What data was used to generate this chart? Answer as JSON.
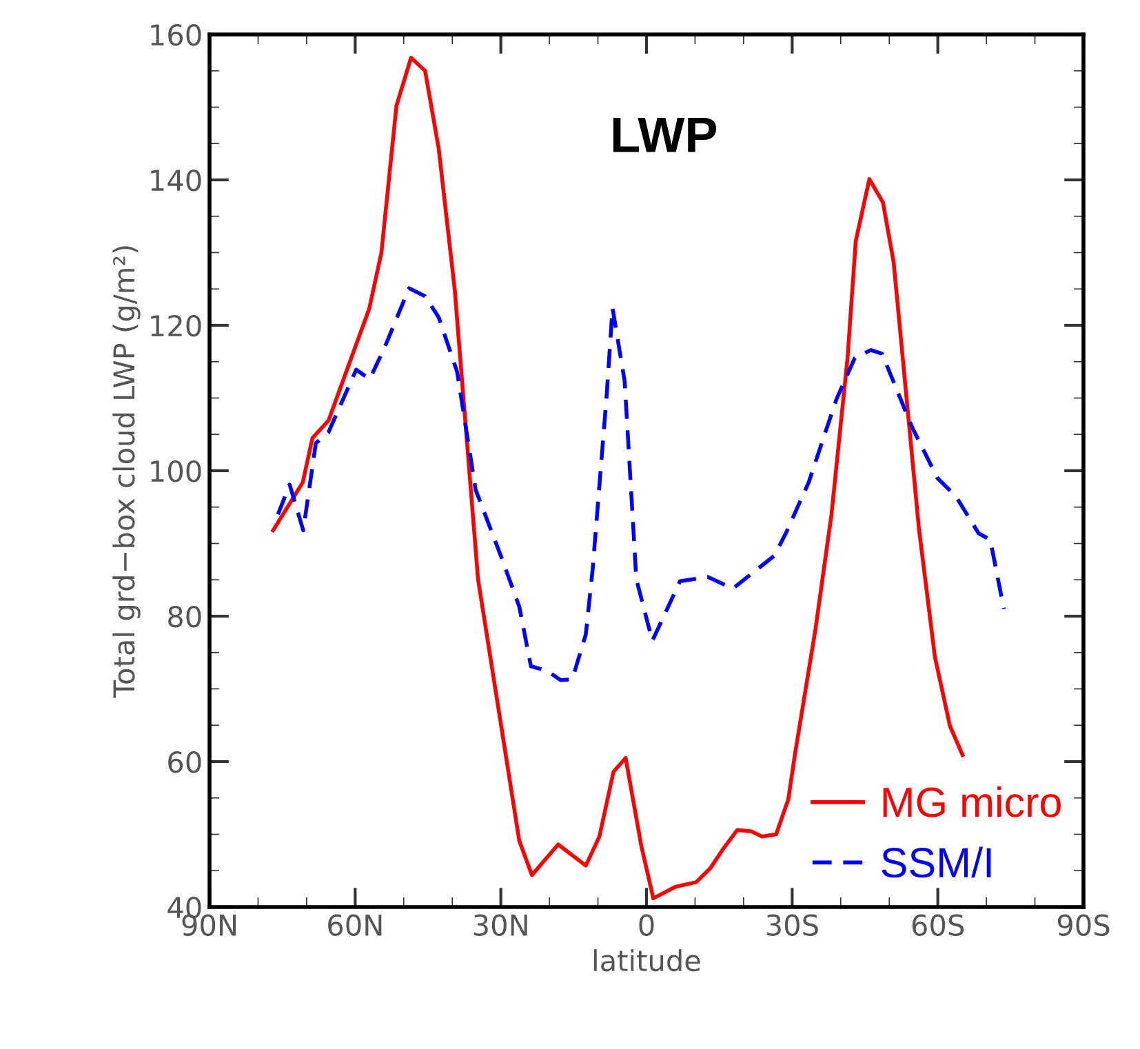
{
  "chart_data": {
    "type": "line",
    "title": "LWP",
    "xlabel": "latitude",
    "ylabel": "Total grd−box cloud LWP (g/m²)",
    "xlim": [
      90,
      -90
    ],
    "ylim": [
      40,
      160
    ],
    "xticks": [
      {
        "value": 90,
        "label": "90N"
      },
      {
        "value": 60,
        "label": "60N"
      },
      {
        "value": 30,
        "label": "30N"
      },
      0,
      {
        "value": -30,
        "label": "30S"
      },
      {
        "value": -60,
        "label": "60S"
      },
      {
        "value": -90,
        "label": "90S"
      }
    ],
    "yticks": [
      40,
      60,
      80,
      100,
      120,
      140,
      160
    ],
    "grid": false,
    "legend": "bottom right",
    "marker": "none",
    "series": [
      {
        "name": "MG micro",
        "color": "#ff0000",
        "line_style": "solid",
        "x": [
          76.9,
          70.8,
          68.8,
          65.5,
          57.1,
          54.6,
          51.5,
          48.5,
          45.6,
          42.8,
          39.5,
          34.7,
          26.2,
          23.6,
          18.2,
          12.5,
          9.7,
          6.8,
          4.3,
          1.1,
          -1.4,
          -6.0,
          -10.2,
          -13.1,
          -15.9,
          -18.7,
          -21.6,
          -23.8,
          -26.7,
          -29.2,
          -30.6,
          -34.8,
          -38.1,
          -41.4,
          -43.1,
          -45.9,
          -48.7,
          -50.9,
          -56.1,
          -59.4,
          -62.5,
          -65.1
        ],
        "values": [
          91.8,
          98.4,
          104.5,
          106.9,
          122.3,
          130.0,
          150.2,
          156.8,
          155.0,
          144.3,
          124.9,
          85.1,
          49.1,
          44.4,
          48.6,
          45.7,
          49.7,
          58.6,
          60.5,
          48.5,
          41.2,
          42.8,
          43.4,
          45.3,
          48.1,
          50.6,
          50.4,
          49.7,
          50.0,
          54.8,
          61.1,
          78.2,
          94.0,
          115.5,
          131.6,
          140.1,
          136.9,
          128.7,
          92.1,
          74.4,
          64.9,
          60.9
        ]
      },
      {
        "name": "SSM/I",
        "color": "#0000ff",
        "line_style": "dashed",
        "x": [
          75.9,
          73.5,
          70.7,
          68.1,
          65.5,
          59.8,
          57.0,
          54.1,
          48.9,
          45.6,
          42.8,
          39.0,
          35.2,
          30.0,
          26.2,
          23.8,
          20.5,
          17.7,
          15.3,
          12.5,
          11.1,
          8.2,
          7.0,
          4.5,
          2.1,
          -1.2,
          -6.9,
          -12.6,
          -17.8,
          -26.3,
          -28.7,
          -33.4,
          -39.1,
          -42.9,
          -46.2,
          -48.5,
          -54.7,
          -59.9,
          -63.7,
          -68.4,
          -70.8,
          -73.6
        ],
        "values": [
          94.0,
          98.1,
          91.8,
          103.8,
          105.3,
          113.9,
          112.6,
          116.7,
          125.1,
          124.0,
          121.1,
          113.6,
          97.4,
          88.3,
          81.3,
          73.1,
          72.5,
          71.2,
          71.3,
          77.5,
          86.4,
          110.4,
          122.4,
          112.3,
          85.1,
          76.6,
          84.8,
          85.4,
          83.8,
          88.3,
          91.4,
          98.4,
          109.8,
          115.5,
          116.6,
          116.1,
          106.0,
          99.0,
          96.5,
          91.4,
          90.5,
          81.0
        ]
      }
    ]
  }
}
